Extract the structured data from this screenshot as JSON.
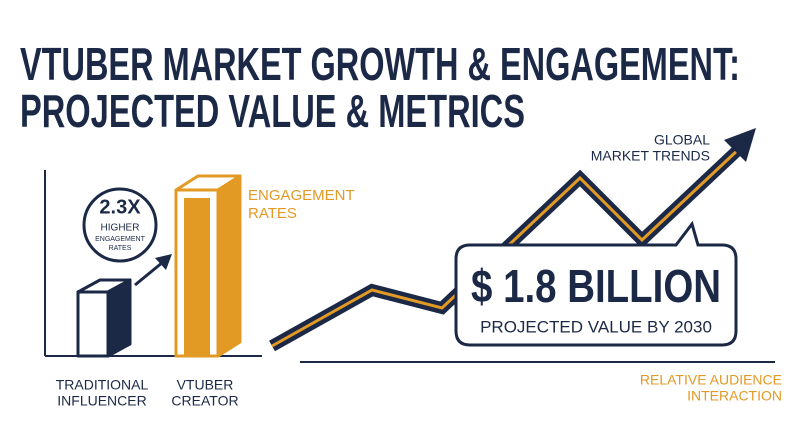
{
  "header": {
    "title_lines": [
      "VTUBER MARKET GROWTH & ENGAGEMENT:",
      "PROJECTED VALUE & METRICS"
    ]
  },
  "comparison": {
    "badge": {
      "value": "2.3X",
      "lines": [
        "HIGHER",
        "ENGAGEMENT",
        "RATES"
      ]
    },
    "metric_label_lines": [
      "ENGAGEMENT",
      "RATES"
    ],
    "bars": [
      {
        "label_lines": [
          "TRADITIONAL",
          "INFLUENCER"
        ]
      },
      {
        "label_lines": [
          "VTUBER",
          "CREATOR"
        ]
      }
    ]
  },
  "trend": {
    "label_lines": [
      "GLOBAL",
      "MARKET TRENDS"
    ],
    "axis_label_lines": [
      "RELATIVE AUDIENCE",
      "INTERACTION"
    ],
    "callout": {
      "value": "$ 1.8 BILLION",
      "caption": "PROJECTED VALUE BY 2030"
    }
  }
}
